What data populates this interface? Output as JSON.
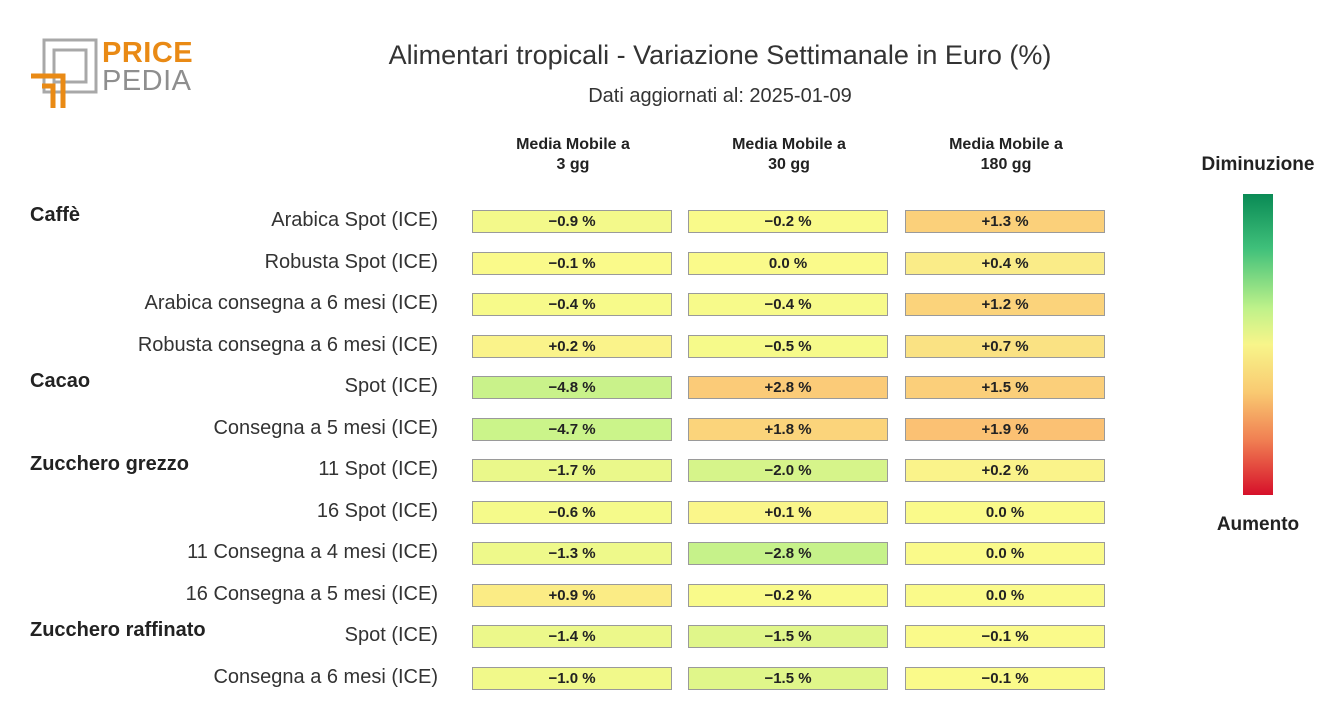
{
  "logo": {
    "word1": "PRICE",
    "word2": "PEDIA",
    "brand_color": "#E98A15",
    "secondary_color": "#8e8e8e"
  },
  "title": "Alimentari tropicali - Variazione Settimanale in Euro (%)",
  "subtitle": "Dati aggiornati al: 2025-01-09",
  "legend": {
    "top": "Diminuzione",
    "bottom": "Aumento"
  },
  "chart_data": {
    "type": "heatmap",
    "columns": [
      "Media Mobile a\n3 gg",
      "Media Mobile a\n30 gg",
      "Media Mobile a\n180 gg"
    ],
    "groups": [
      {
        "name": "Caffè",
        "rows": [
          {
            "label": "Arabica Spot (ICE)",
            "values": [
              "−0.9 %",
              "−0.2 %",
              "+1.3 %"
            ],
            "colors": [
              "#f3f98a",
              "#f9fa8a",
              "#fbd07a"
            ]
          },
          {
            "label": "Robusta Spot (ICE)",
            "values": [
              "−0.1 %",
              "0.0 %",
              "+0.4 %"
            ],
            "colors": [
              "#fafa8a",
              "#fafa8a",
              "#faec88"
            ]
          },
          {
            "label": "Arabica consegna a 6 mesi (ICE)",
            "values": [
              "−0.4 %",
              "−0.4 %",
              "+1.2 %"
            ],
            "colors": [
              "#f7fa8a",
              "#f7fa8a",
              "#fbd37b"
            ]
          },
          {
            "label": "Robusta consegna a 6 mesi (ICE)",
            "values": [
              "+0.2 %",
              "−0.5 %",
              "+0.7 %"
            ],
            "colors": [
              "#faf38a",
              "#f6fa8a",
              "#fae283"
            ]
          }
        ]
      },
      {
        "name": "Cacao",
        "rows": [
          {
            "label": "Spot (ICE)",
            "values": [
              "−4.8 %",
              "+2.8 %",
              "+1.5 %"
            ],
            "colors": [
              "#c9f28a",
              "#fbcb78",
              "#fbcf7a"
            ]
          },
          {
            "label": "Consegna a 5 mesi (ICE)",
            "values": [
              "−4.7 %",
              "+1.8 %",
              "+1.9 %"
            ],
            "colors": [
              "#cbf48a",
              "#fbd47b",
              "#fbc173"
            ]
          }
        ]
      },
      {
        "name": "Zucchero grezzo",
        "rows": [
          {
            "label": "11 Spot (ICE)",
            "values": [
              "−1.7 %",
              "−2.0 %",
              "+0.2 %"
            ],
            "colors": [
              "#eaf88a",
              "#d6f48a",
              "#faf38a"
            ]
          },
          {
            "label": "16 Spot (ICE)",
            "values": [
              "−0.6 %",
              "+0.1 %",
              "0.0 %"
            ],
            "colors": [
              "#f5fa8a",
              "#faf68a",
              "#fafa8a"
            ]
          },
          {
            "label": "11 Consegna a 4 mesi (ICE)",
            "values": [
              "−1.3 %",
              "−2.8 %",
              "0.0 %"
            ],
            "colors": [
              "#eef98a",
              "#c6f28a",
              "#fafa8a"
            ]
          },
          {
            "label": "16 Consegna a 5 mesi (ICE)",
            "values": [
              "+0.9 %",
              "−0.2 %",
              "0.0 %"
            ],
            "colors": [
              "#fbec85",
              "#f9fa8a",
              "#fafa8a"
            ]
          }
        ]
      },
      {
        "name": "Zucchero raffinato",
        "rows": [
          {
            "label": "Spot (ICE)",
            "values": [
              "−1.4 %",
              "−1.5 %",
              "−0.1 %"
            ],
            "colors": [
              "#ecf88a",
              "#e0f68a",
              "#fafa8a"
            ]
          },
          {
            "label": "Consegna a 6 mesi (ICE)",
            "values": [
              "−1.0 %",
              "−1.5 %",
              "−0.1 %"
            ],
            "colors": [
              "#f1f98a",
              "#e0f68a",
              "#fafa8a"
            ]
          }
        ]
      }
    ]
  }
}
